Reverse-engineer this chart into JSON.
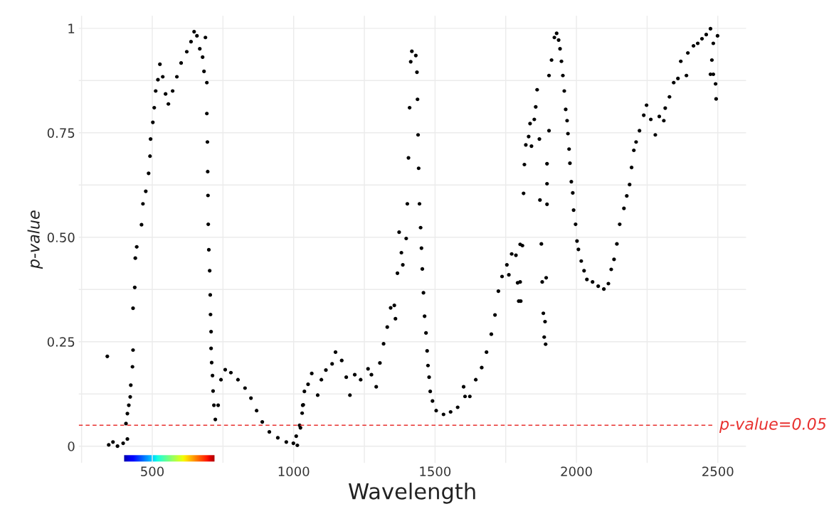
{
  "chart_data": {
    "type": "scatter",
    "xlabel": "Wavelength",
    "ylabel": "p-value",
    "xlim": [
      240,
      2600
    ],
    "ylim": [
      -0.04,
      1.03
    ],
    "xticks": [
      {
        "value": 250,
        "label": null
      },
      500,
      {
        "value": 750,
        "label": null
      },
      1000,
      {
        "value": 1250,
        "label": null
      },
      1500,
      {
        "value": 1750,
        "label": null
      },
      2000,
      {
        "value": 2250,
        "label": null
      },
      2500
    ],
    "yticks": [
      {
        "value": 0,
        "label": "0"
      },
      {
        "value": 0.125,
        "label": null
      },
      0.25,
      {
        "value": 0.375,
        "label": null
      },
      {
        "value": 0.5,
        "label": "0.50"
      },
      {
        "value": 0.625,
        "label": null
      },
      0.75,
      {
        "value": 0.875,
        "label": null
      },
      {
        "value": 1,
        "label": "1"
      }
    ],
    "grid": true,
    "marker": "circle",
    "ref_lines": [
      {
        "axis": "y",
        "value": 0.05,
        "label": "p-value=0.05",
        "color": "#e8312f",
        "line_style": "dashed"
      }
    ],
    "series": [
      {
        "color": "#000000",
        "x": [
          341,
          346,
          361,
          377,
          397,
          412,
          407,
          412,
          417,
          422,
          424,
          430,
          432,
          432,
          438,
          440,
          445,
          462,
          467,
          477,
          487,
          492,
          494,
          502,
          507,
          512,
          520,
          527,
          537,
          547,
          557,
          572,
          587,
          602,
          622,
          637,
          648,
          658,
          668,
          678,
          688,
          683,
          693,
          693,
          695,
          696,
          697,
          698,
          700,
          703,
          705,
          706,
          708,
          708,
          710,
          713,
          715,
          718,
          723,
          733,
          743,
          758,
          778,
          803,
          828,
          849,
          869,
          889,
          914,
          944,
          974,
          999,
          1009,
          1024,
          1032,
          1013,
          1021,
          1030,
          1034,
          1038,
          1051,
          1064,
          1085,
          1098,
          1114,
          1136,
          1148,
          1170,
          1186,
          1199,
          1216,
          1237,
          1263,
          1275,
          1292,
          1305,
          1318,
          1331,
          1343,
          1356,
          1360,
          1367,
          1373,
          1381,
          1386,
          1398,
          1402,
          1406,
          1410,
          1414,
          1418,
          1432,
          1436,
          1438,
          1440,
          1442,
          1445,
          1449,
          1452,
          1455,
          1459,
          1463,
          1468,
          1472,
          1475,
          1479,
          1483,
          1491,
          1504,
          1530,
          1555,
          1580,
          1601,
          1606,
          1623,
          1644,
          1665,
          1682,
          1699,
          1712,
          1724,
          1737,
          1754,
          1771,
          1801,
          1792,
          1796,
          1761,
          1786,
          1809,
          1801,
          1803,
          1813,
          1816,
          1821,
          1831,
          1841,
          1836,
          1851,
          1856,
          1861,
          1869,
          1871,
          1876,
          1879,
          1883,
          1889,
          1886,
          1891,
          1893,
          1896,
          1896,
          1896,
          1903,
          1903,
          1912,
          1922,
          1930,
          1937,
          1942,
          1947,
          1952,
          1957,
          1962,
          1967,
          1970,
          1974,
          1977,
          1982,
          1987,
          1990,
          1997,
          2002,
          2007,
          2017,
          2027,
          2037,
          2057,
          2077,
          2097,
          2113,
          2123,
          2133,
          2143,
          2153,
          2168,
          2178,
          2188,
          2195,
          2203,
          2211,
          2223,
          2238,
          2248,
          2263,
          2279,
          2293,
          2309,
          2314,
          2329,
          2344,
          2359,
          2369,
          2389,
          2394,
          2414,
          2429,
          2444,
          2459,
          2474,
          2484,
          2479,
          2474,
          2484,
          2492,
          2499,
          2494
        ],
        "values": [
          0.215,
          0.003,
          0.01,
          0.0,
          0.007,
          0.017,
          0.054,
          0.078,
          0.098,
          0.118,
          0.146,
          0.19,
          0.23,
          0.33,
          0.38,
          0.45,
          0.477,
          0.53,
          0.58,
          0.61,
          0.653,
          0.694,
          0.735,
          0.775,
          0.81,
          0.85,
          0.877,
          0.914,
          0.884,
          0.843,
          0.819,
          0.85,
          0.884,
          0.917,
          0.944,
          0.968,
          0.992,
          0.982,
          0.951,
          0.931,
          0.978,
          0.897,
          0.87,
          0.796,
          0.728,
          0.657,
          0.6,
          0.531,
          0.47,
          0.42,
          0.362,
          0.315,
          0.274,
          0.234,
          0.2,
          0.169,
          0.132,
          0.098,
          0.064,
          0.098,
          0.159,
          0.183,
          0.176,
          0.159,
          0.139,
          0.115,
          0.085,
          0.058,
          0.034,
          0.02,
          0.01,
          0.007,
          0.024,
          0.044,
          0.098,
          0.002,
          0.05,
          0.079,
          0.099,
          0.131,
          0.148,
          0.174,
          0.122,
          0.159,
          0.182,
          0.197,
          0.225,
          0.205,
          0.165,
          0.122,
          0.171,
          0.159,
          0.185,
          0.171,
          0.142,
          0.199,
          0.245,
          0.285,
          0.331,
          0.337,
          0.305,
          0.414,
          0.512,
          0.463,
          0.434,
          0.497,
          0.58,
          0.69,
          0.81,
          0.92,
          0.945,
          0.935,
          0.895,
          0.83,
          0.745,
          0.665,
          0.58,
          0.523,
          0.474,
          0.424,
          0.367,
          0.311,
          0.271,
          0.228,
          0.193,
          0.165,
          0.131,
          0.108,
          0.085,
          0.076,
          0.082,
          0.093,
          0.142,
          0.119,
          0.119,
          0.159,
          0.188,
          0.225,
          0.268,
          0.314,
          0.371,
          0.406,
          0.434,
          0.46,
          0.483,
          0.391,
          0.347,
          0.41,
          0.457,
          0.48,
          0.393,
          0.347,
          0.605,
          0.674,
          0.721,
          0.741,
          0.718,
          0.772,
          0.782,
          0.812,
          0.853,
          0.735,
          0.589,
          0.484,
          0.393,
          0.318,
          0.298,
          0.261,
          0.244,
          0.403,
          0.579,
          0.628,
          0.676,
          0.755,
          0.887,
          0.924,
          0.978,
          0.988,
          0.972,
          0.951,
          0.921,
          0.887,
          0.85,
          0.806,
          0.779,
          0.748,
          0.711,
          0.677,
          0.633,
          0.606,
          0.565,
          0.531,
          0.491,
          0.471,
          0.443,
          0.42,
          0.399,
          0.393,
          0.383,
          0.376,
          0.389,
          0.423,
          0.447,
          0.484,
          0.531,
          0.569,
          0.599,
          0.626,
          0.667,
          0.708,
          0.728,
          0.755,
          0.792,
          0.816,
          0.782,
          0.745,
          0.789,
          0.779,
          0.809,
          0.836,
          0.87,
          0.88,
          0.921,
          0.887,
          0.941,
          0.958,
          0.964,
          0.975,
          0.985,
          0.999,
          0.964,
          0.924,
          0.89,
          0.89,
          0.867,
          0.982,
          0.831
        ]
      }
    ]
  }
}
